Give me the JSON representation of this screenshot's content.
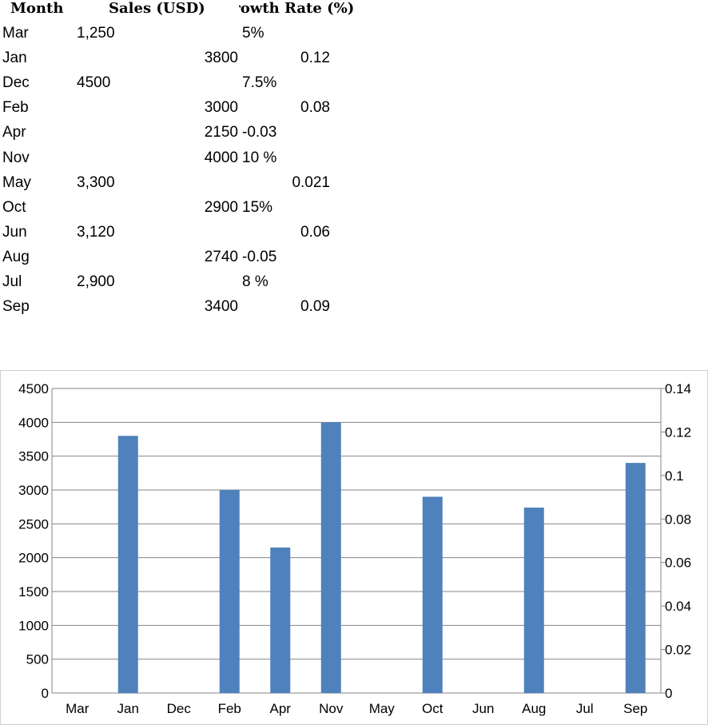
{
  "table": {
    "headers": {
      "month": "Month",
      "sales": "Sales (USD)",
      "growth": "Growth Rate (%)"
    },
    "rows": [
      {
        "month": "Mar",
        "sales": "1,250",
        "sales_align": "left",
        "growth": "5%",
        "growth_align": "left"
      },
      {
        "month": "Jan",
        "sales": "3800",
        "sales_align": "right",
        "growth": "0.12",
        "growth_align": "right"
      },
      {
        "month": "Dec",
        "sales": "4500",
        "sales_align": "left",
        "growth": "7.5%",
        "growth_align": "left"
      },
      {
        "month": "Feb",
        "sales": "3000",
        "sales_align": "right",
        "growth": "0.08",
        "growth_align": "right"
      },
      {
        "month": "Apr",
        "sales": "2150",
        "sales_align": "right",
        "growth": "-0.03",
        "growth_align": "left"
      },
      {
        "month": "Nov",
        "sales": "4000",
        "sales_align": "right",
        "growth": "10 %",
        "growth_align": "left"
      },
      {
        "month": "May",
        "sales": "3,300",
        "sales_align": "left",
        "growth": "0.021",
        "growth_align": "right"
      },
      {
        "month": "Oct",
        "sales": "2900",
        "sales_align": "right",
        "growth": "15%",
        "growth_align": "left"
      },
      {
        "month": "Jun",
        "sales": "3,120",
        "sales_align": "left",
        "growth": "0.06",
        "growth_align": "right"
      },
      {
        "month": "Aug",
        "sales": "2740",
        "sales_align": "right",
        "growth": "-0.05",
        "growth_align": "left"
      },
      {
        "month": "Jul",
        "sales": "2,900",
        "sales_align": "left",
        "growth": "8 %",
        "growth_align": "left"
      },
      {
        "month": "Sep",
        "sales": "3400",
        "sales_align": "right",
        "growth": "0.09",
        "growth_align": "right"
      }
    ]
  },
  "chart_data": {
    "type": "bar",
    "categories": [
      "Mar",
      "Jan",
      "Dec",
      "Feb",
      "Apr",
      "Nov",
      "May",
      "Oct",
      "Jun",
      "Aug",
      "Jul",
      "Sep"
    ],
    "series": [
      {
        "values": [
          null,
          3800,
          null,
          3000,
          2150,
          4000,
          null,
          2900,
          null,
          2740,
          null,
          3400
        ],
        "color": "#4f81bd",
        "axis": "left"
      }
    ],
    "ylim": [
      0,
      4500
    ],
    "yticks": [
      0,
      500,
      1000,
      1500,
      2000,
      2500,
      3000,
      3500,
      4000,
      4500
    ],
    "y2lim": [
      0,
      0.14
    ],
    "y2ticks": [
      "0",
      "0.02",
      "0.04",
      "0.06",
      "0.08",
      "0.1",
      "0.12",
      "0.14"
    ],
    "grid": true,
    "gridline_color": "#868686",
    "title": "",
    "xlabel": "",
    "ylabel": ""
  }
}
